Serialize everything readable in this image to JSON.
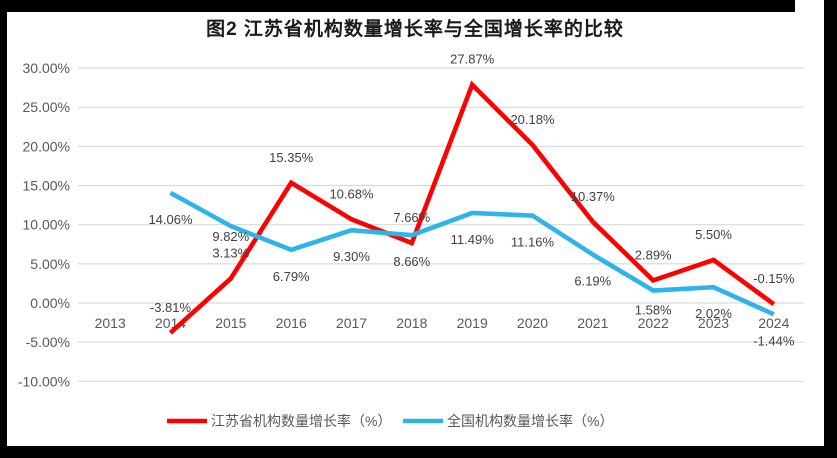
{
  "frame": {
    "border_color": "#000000",
    "background": "#FFFFFF"
  },
  "chart_data": {
    "type": "line",
    "title": "图2  江苏省机构数量增长率与全国增长率的比较",
    "categories": [
      "2013",
      "2014",
      "2015",
      "2016",
      "2017",
      "2018",
      "2019",
      "2020",
      "2021",
      "2022",
      "2023",
      "2024"
    ],
    "xlabel": "",
    "ylabel": "",
    "ylim": [
      -10,
      30
    ],
    "grid": true,
    "data_labels": true,
    "legend_position": "bottom",
    "y_ticks": [
      {
        "value": 30,
        "label": "30.00%"
      },
      {
        "value": 25,
        "label": "25.00%"
      },
      {
        "value": 20,
        "label": "20.00%"
      },
      {
        "value": 15,
        "label": "15.00%"
      },
      {
        "value": 10,
        "label": "10.00%"
      },
      {
        "value": 5,
        "label": "5.00%"
      },
      {
        "value": 0,
        "label": "0.00%"
      },
      {
        "value": -5,
        "label": "-5.00%"
      },
      {
        "value": -10,
        "label": "-10.00%"
      }
    ],
    "series": [
      {
        "name": "江苏省机构数量增长率（%）",
        "color": "#FF0000",
        "values": [
          null,
          -3.81,
          3.13,
          15.35,
          10.68,
          7.66,
          27.87,
          20.18,
          10.37,
          2.89,
          5.5,
          -0.15
        ]
      },
      {
        "name": "全国机构数量增长率（%）",
        "color": "#2EB4E8",
        "values": [
          null,
          14.06,
          9.82,
          6.79,
          9.3,
          8.66,
          11.49,
          11.16,
          6.19,
          1.58,
          2.02,
          -1.44
        ]
      }
    ],
    "colors": {
      "grid": "#D9D9D9",
      "axis_text": "#595959",
      "data_label_text": "#404040",
      "title_text": "#1A1A1A",
      "background": "#FFFFFF"
    }
  }
}
